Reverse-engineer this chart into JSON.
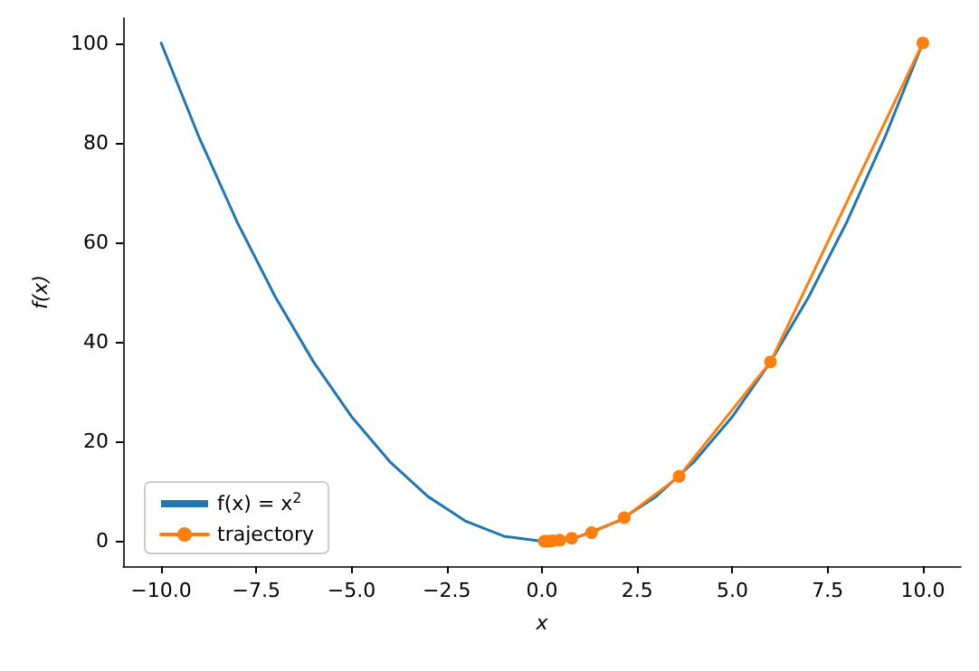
{
  "chart_data": {
    "type": "line",
    "xlabel": "x",
    "ylabel": "f(x)",
    "series": [
      {
        "name": "f(x) = x$^{2}$",
        "color": "#1f77b4",
        "marker": "none",
        "x": [
          -10,
          -9,
          -8,
          -7,
          -6,
          -5,
          -4,
          -3,
          -2,
          -1,
          0,
          1,
          2,
          3,
          4,
          5,
          6,
          7,
          8,
          9,
          10
        ],
        "values": [
          100,
          81,
          64,
          49,
          36,
          25,
          16,
          9,
          4,
          1,
          0,
          1,
          4,
          9,
          16,
          25,
          36,
          49,
          64,
          81,
          100
        ]
      },
      {
        "name": "trajectory",
        "color": "#ff7f0e",
        "marker": "circle",
        "x": [
          10,
          6,
          3.6,
          2.16,
          1.3,
          0.78,
          0.47,
          0.28,
          0.17,
          0.1,
          0.06
        ],
        "values": [
          100,
          36,
          13,
          4.7,
          1.7,
          0.6,
          0.2,
          0.1,
          0,
          0,
          0
        ]
      }
    ],
    "xlim": [
      -11,
      11
    ],
    "xticks": [
      {
        "value": -10,
        "label": "−10.0"
      },
      {
        "value": -7.5,
        "label": "−7.5"
      },
      {
        "value": -5,
        "label": "−5.0"
      },
      {
        "value": -2.5,
        "label": "−2.5"
      },
      {
        "value": 0,
        "label": "0.0"
      },
      {
        "value": 2.5,
        "label": "2.5"
      },
      {
        "value": 5,
        "label": "5.0"
      },
      {
        "value": 7.5,
        "label": "7.5"
      },
      {
        "value": 10,
        "label": "10.0"
      }
    ],
    "ylim": [
      -5,
      105
    ],
    "yticks": [
      0,
      20,
      40,
      60,
      80,
      100
    ],
    "grid": false,
    "legend": "bottom left",
    "line_style": "solid"
  }
}
